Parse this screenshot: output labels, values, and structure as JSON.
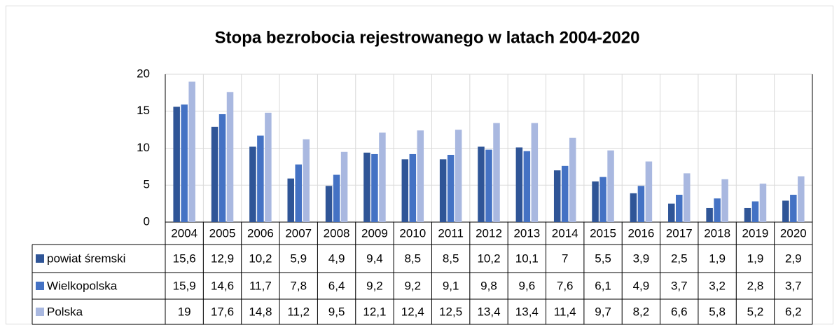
{
  "chart_data": {
    "type": "bar",
    "title": "Stopa bezrobocia rejestrowanego w latach 2004-2020",
    "categories": [
      "2004",
      "2005",
      "2006",
      "2007",
      "2008",
      "2009",
      "2010",
      "2011",
      "2012",
      "2013",
      "2014",
      "2015",
      "2016",
      "2017",
      "2018",
      "2019",
      "2020"
    ],
    "series": [
      {
        "name": "powiat śremski",
        "color": "#2f5597",
        "values": [
          15.6,
          12.9,
          10.2,
          5.9,
          4.9,
          9.4,
          8.5,
          8.5,
          10.2,
          10.1,
          7,
          5.5,
          3.9,
          2.5,
          1.9,
          1.9,
          2.9
        ],
        "value_labels": [
          "15,6",
          "12,9",
          "10,2",
          "5,9",
          "4,9",
          "9,4",
          "8,5",
          "8,5",
          "10,2",
          "10,1",
          "7",
          "5,5",
          "3,9",
          "2,5",
          "1,9",
          "1,9",
          "2,9"
        ]
      },
      {
        "name": "Wielkopolska",
        "color": "#4472c4",
        "values": [
          15.9,
          14.6,
          11.7,
          7.8,
          6.4,
          9.2,
          9.2,
          9.1,
          9.8,
          9.6,
          7.6,
          6.1,
          4.9,
          3.7,
          3.2,
          2.8,
          3.7
        ],
        "value_labels": [
          "15,9",
          "14,6",
          "11,7",
          "7,8",
          "6,4",
          "9,2",
          "9,2",
          "9,1",
          "9,8",
          "9,6",
          "7,6",
          "6,1",
          "4,9",
          "3,7",
          "3,2",
          "2,8",
          "3,7"
        ]
      },
      {
        "name": "Polska",
        "color": "#a9b8e0",
        "values": [
          19,
          17.6,
          14.8,
          11.2,
          9.5,
          12.1,
          12.4,
          12.5,
          13.4,
          13.4,
          11.4,
          9.7,
          8.2,
          6.6,
          5.8,
          5.2,
          6.2
        ],
        "value_labels": [
          "19",
          "17,6",
          "14,8",
          "11,2",
          "9,5",
          "12,1",
          "12,4",
          "12,5",
          "13,4",
          "13,4",
          "11,4",
          "9,7",
          "8,2",
          "6,6",
          "5,8",
          "5,2",
          "6,2"
        ]
      }
    ],
    "ylim": [
      0,
      20
    ],
    "yticks": [
      0,
      5,
      10,
      15,
      20
    ],
    "grid": true
  }
}
